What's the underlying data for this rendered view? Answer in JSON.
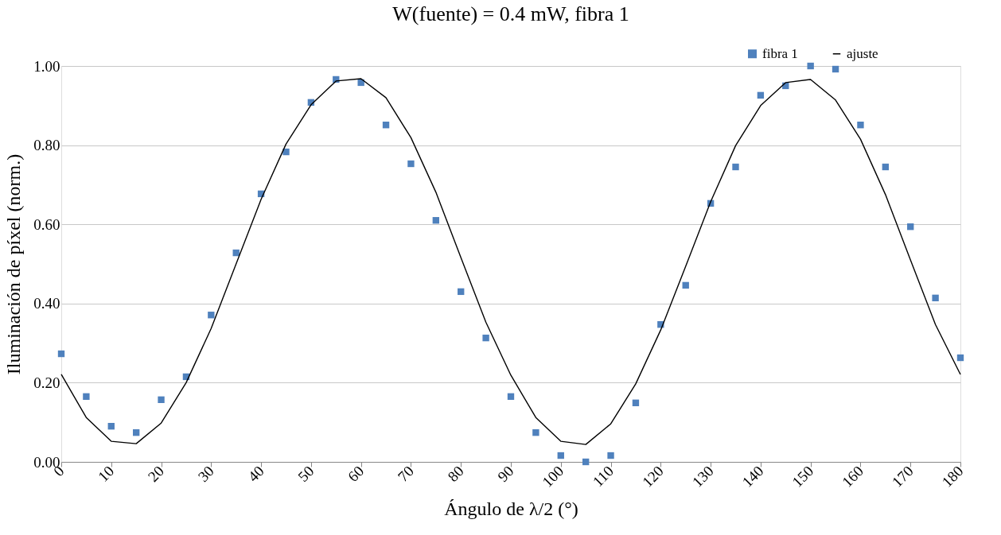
{
  "chart_data": {
    "type": "scatter",
    "title": "W(fuente) = 0.4 mW, fibra 1",
    "xlabel": "Ángulo de λ/2 (°)",
    "ylabel": "Iluminación de píxel (norm.)",
    "x": [
      0,
      5,
      10,
      15,
      20,
      25,
      30,
      35,
      40,
      45,
      50,
      55,
      60,
      65,
      70,
      75,
      80,
      85,
      90,
      95,
      100,
      105,
      110,
      115,
      120,
      125,
      130,
      135,
      140,
      145,
      150,
      155,
      160,
      165,
      170,
      175,
      180
    ],
    "series": [
      {
        "name": "fibra 1",
        "type": "scatter",
        "marker": "square",
        "color": "#4f81bd",
        "values": [
          0.273,
          0.165,
          0.09,
          0.074,
          0.157,
          0.215,
          0.371,
          0.528,
          0.677,
          0.783,
          0.908,
          0.966,
          0.958,
          0.851,
          0.753,
          0.61,
          0.43,
          0.313,
          0.165,
          0.074,
          0.016,
          0.0,
          0.016,
          0.149,
          0.347,
          0.446,
          0.653,
          0.745,
          0.926,
          0.95,
          1.0,
          0.992,
          0.851,
          0.745,
          0.594,
          0.414,
          0.263
        ]
      },
      {
        "name": "ajuste",
        "type": "line",
        "marker": "none",
        "line_style": "solid",
        "color": "#000000",
        "values": [
          0.221,
          0.112,
          0.052,
          0.046,
          0.098,
          0.2,
          0.337,
          0.5,
          0.663,
          0.803,
          0.902,
          0.962,
          0.968,
          0.92,
          0.819,
          0.681,
          0.516,
          0.353,
          0.219,
          0.112,
          0.052,
          0.044,
          0.096,
          0.197,
          0.333,
          0.494,
          0.657,
          0.799,
          0.9,
          0.958,
          0.966,
          0.914,
          0.815,
          0.675,
          0.51,
          0.347,
          0.221
        ]
      }
    ],
    "xlim": [
      0,
      180
    ],
    "xticks": [
      0,
      10,
      20,
      30,
      40,
      50,
      60,
      70,
      80,
      90,
      100,
      110,
      120,
      130,
      140,
      150,
      160,
      170,
      180
    ],
    "ylim": [
      0,
      1
    ],
    "yticks": [
      {
        "value": 0,
        "label": "0.00"
      },
      {
        "value": 0.2,
        "label": "0.20"
      },
      {
        "value": 0.4,
        "label": "0.40"
      },
      {
        "value": 0.6,
        "label": "0.60"
      },
      {
        "value": 0.8,
        "label": "0.80"
      },
      {
        "value": 1,
        "label": "1.00"
      }
    ],
    "grid": "y",
    "legend": "top right"
  }
}
